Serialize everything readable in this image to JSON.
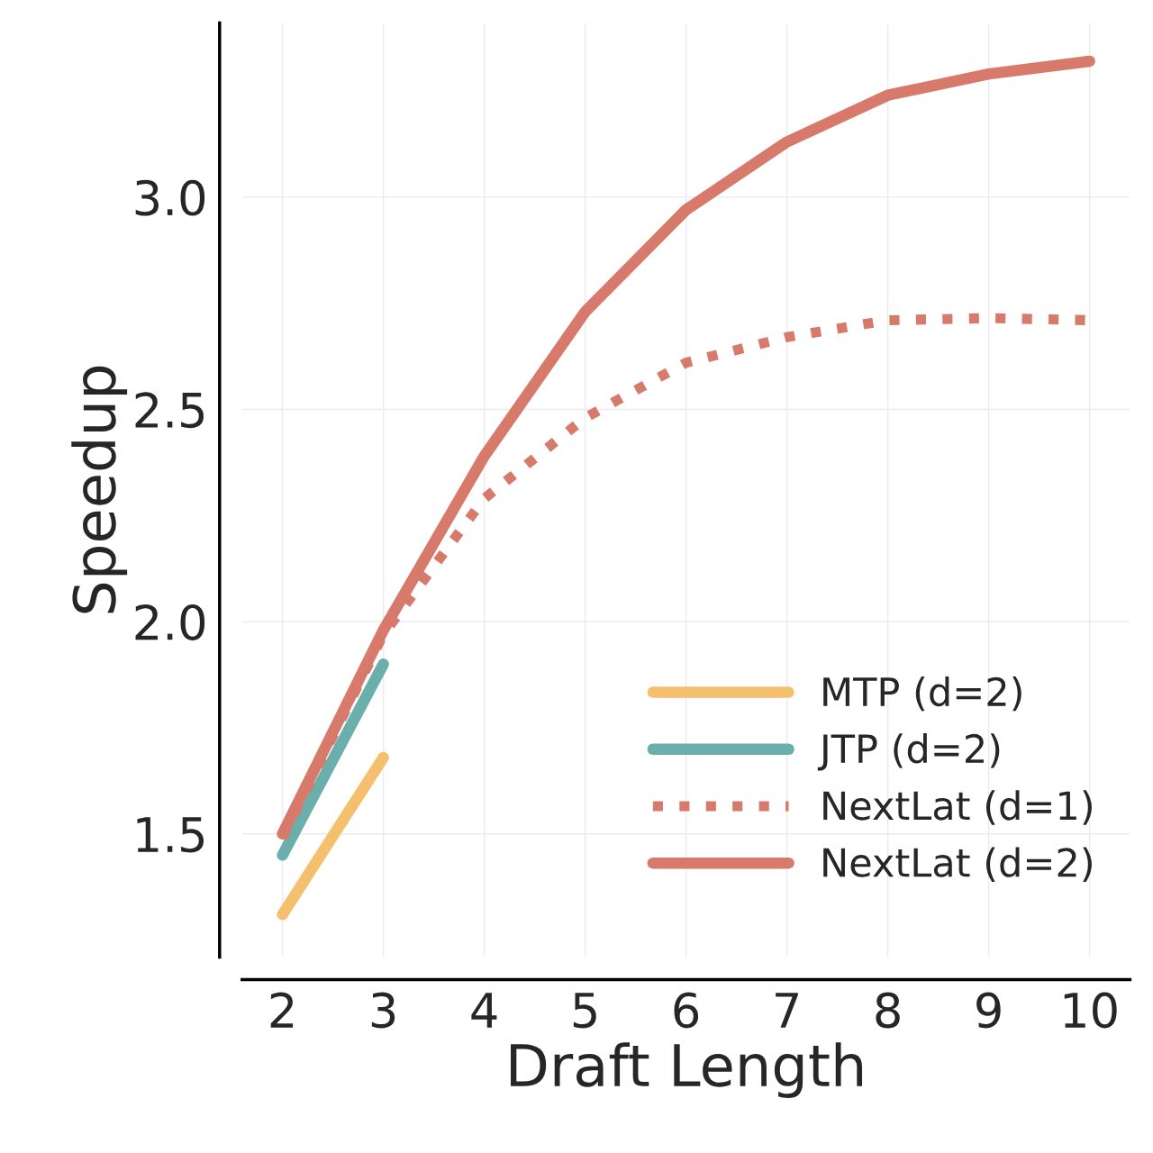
{
  "chart_data": {
    "type": "line",
    "xlabel": "Draft Length",
    "ylabel": "Speedup",
    "x": [
      2,
      3,
      4,
      5,
      6,
      7,
      8,
      9,
      10
    ],
    "series": [
      {
        "name": "MTP (d=2)",
        "color": "#f4c06e",
        "values": [
          1.31,
          1.68,
          null,
          null,
          null,
          null,
          null,
          null,
          null
        ],
        "line_style": "solid"
      },
      {
        "name": "JTP (d=2)",
        "color": "#6aafac",
        "values": [
          1.45,
          1.9,
          null,
          null,
          null,
          null,
          null,
          null,
          null
        ],
        "line_style": "solid"
      },
      {
        "name": "NextLat (d=1)",
        "color": "#d77a6b",
        "values": [
          1.49,
          1.97,
          2.29,
          2.48,
          2.61,
          2.67,
          2.71,
          2.715,
          2.71
        ],
        "line_style": "dotted"
      },
      {
        "name": "NextLat (d=2)",
        "color": "#d77a6b",
        "values": [
          1.5,
          1.98,
          2.39,
          2.73,
          2.97,
          3.13,
          3.24,
          3.29,
          3.32
        ],
        "line_style": "solid"
      }
    ],
    "xlim": [
      1.6,
      10.4
    ],
    "ylim": [
      1.21,
      3.41
    ],
    "xticks": [
      2,
      3,
      4,
      5,
      6,
      7,
      8,
      9,
      10
    ],
    "yticks": [
      1.5,
      {
        "value": 2,
        "label": "2.0"
      },
      2.5,
      {
        "value": 3,
        "label": "3.0"
      }
    ],
    "grid": true,
    "legend": "bottom right",
    "marker": "none"
  }
}
